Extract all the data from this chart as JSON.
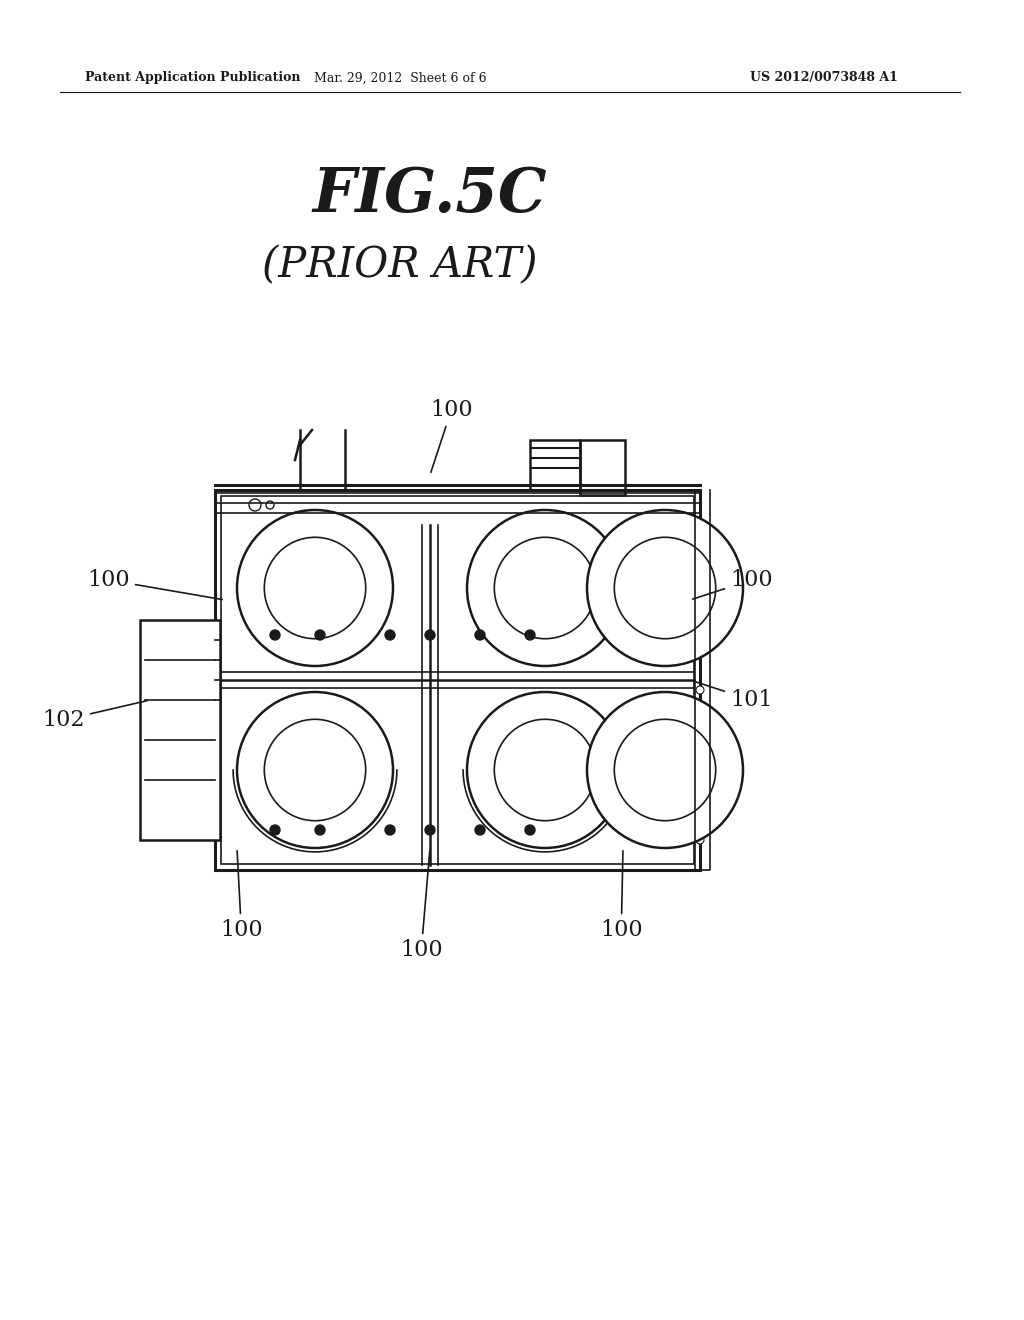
{
  "bg_color": "#ffffff",
  "header_left": "Patent Application Publication",
  "header_mid": "Mar. 29, 2012  Sheet 6 of 6",
  "header_right": "US 2012/0073848 A1",
  "fig_title": "FIG.5C",
  "fig_subtitle": "(PRIOR ART)",
  "label_100_top": "100",
  "label_100_left": "100",
  "label_102": "102",
  "label_100_right": "100",
  "label_101": "101",
  "label_100_botleft": "100",
  "label_100_botmid": "100",
  "label_100_botright": "100",
  "line_color": "#1a1a1a",
  "text_color": "#1a1a1a"
}
